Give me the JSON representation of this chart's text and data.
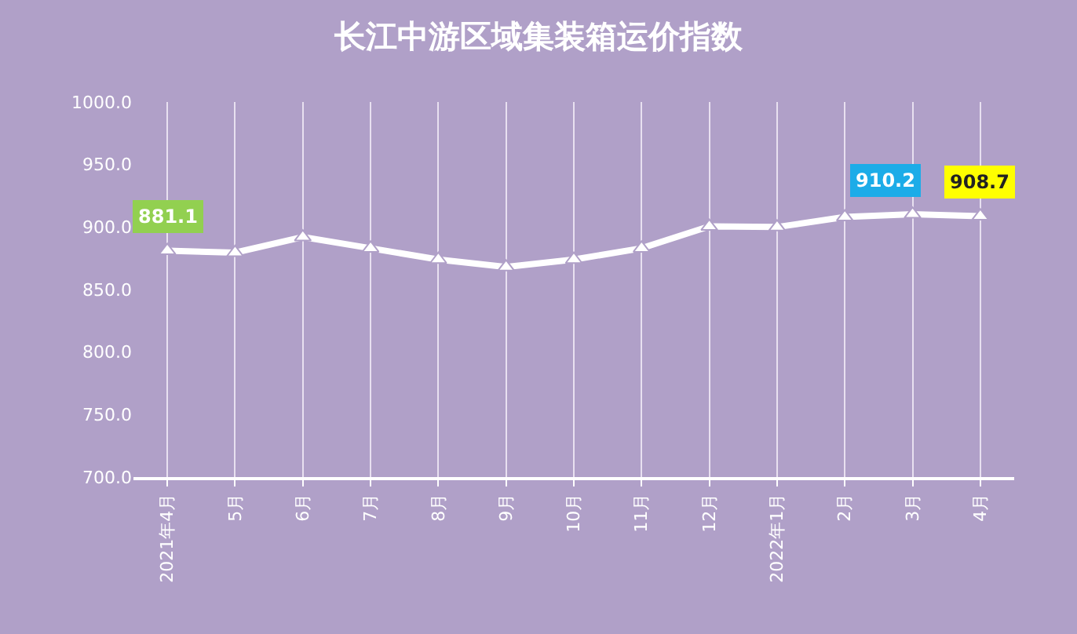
{
  "chart_data": {
    "type": "line",
    "title": "长江中游区域集装箱运价指数",
    "categories": [
      "2021年4月",
      "5月",
      "6月",
      "7月",
      "8月",
      "9月",
      "10月",
      "11月",
      "12月",
      "2022年1月",
      "2月",
      "3月",
      "4月"
    ],
    "series": [
      {
        "color": "#ffffff",
        "values": [
          881.1,
          879.5,
          892,
          883,
          874,
          868,
          874,
          883,
          900.5,
          900,
          908,
          910.2,
          908.7
        ],
        "value_labels": [
          "881.1",
          null,
          null,
          null,
          null,
          null,
          null,
          null,
          null,
          null,
          null,
          "910.2",
          "908.7"
        ]
      }
    ],
    "ylim": [
      700,
      1000
    ],
    "yticks": [
      {
        "value": 700,
        "label": "700.0"
      },
      {
        "value": 750,
        "label": "750.0"
      },
      {
        "value": 800,
        "label": "800.0"
      },
      {
        "value": 850,
        "label": "850.0"
      },
      {
        "value": 900,
        "label": "900.0"
      },
      {
        "value": 950,
        "label": "950.0"
      },
      {
        "value": 1000,
        "label": "1000.0"
      }
    ],
    "grid": "x",
    "marker": "triangle",
    "line_style": "solid",
    "legend": false
  }
}
